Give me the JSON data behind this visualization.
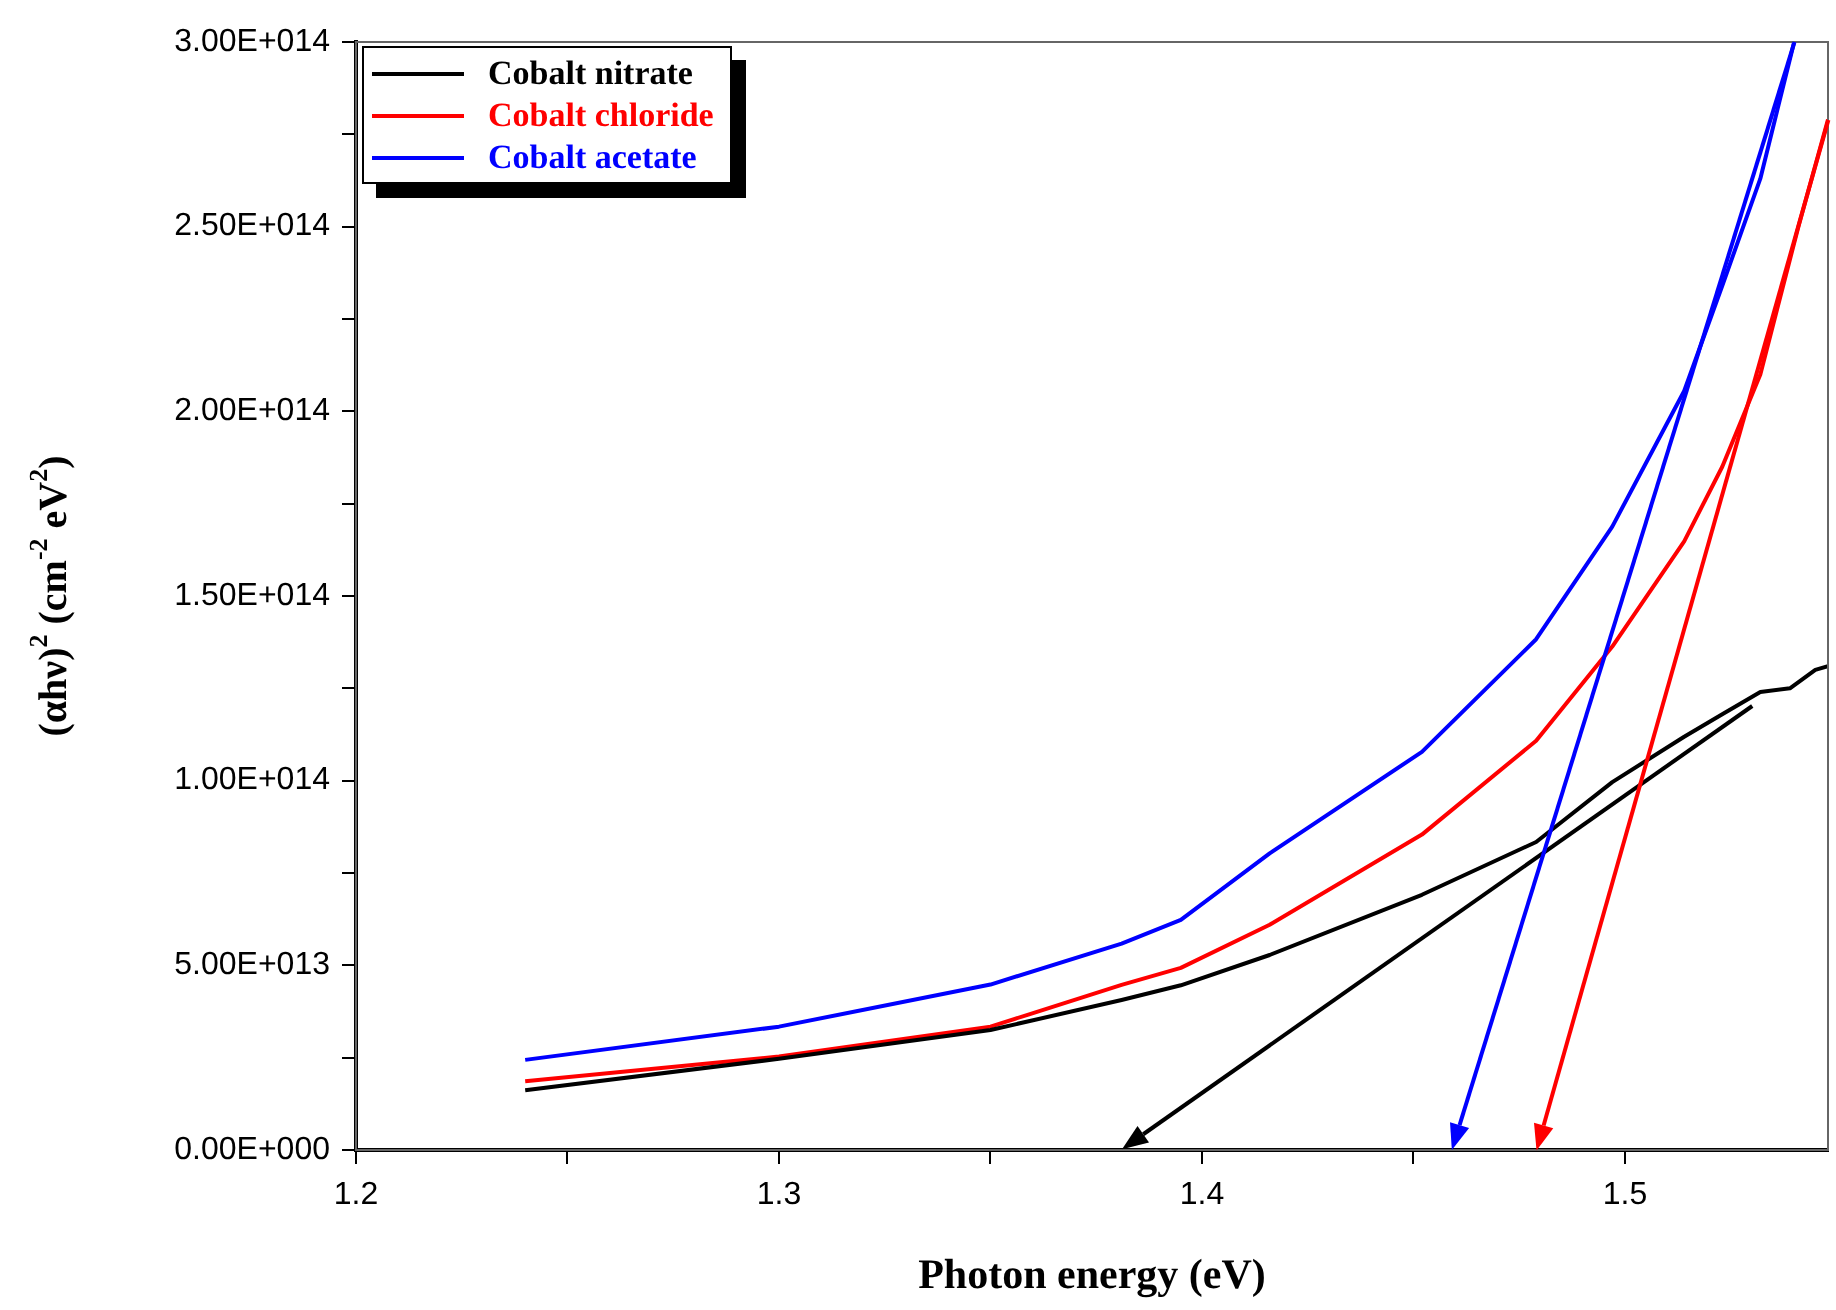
{
  "chart_data": {
    "type": "line",
    "xlabel": "Photon energy (eV)",
    "ylabel": "(αhν)$^{2}$ (cm$^{-2}$ eV$^{2}$)",
    "xlim": [
      1.2,
      1.548
    ],
    "xticks": [
      1.2,
      {
        "value": 1.25,
        "label": null
      },
      1.3,
      {
        "value": 1.35,
        "label": null
      },
      1.4,
      {
        "value": 1.45,
        "label": null
      },
      1.5
    ],
    "ylim": [
      0,
      300000000000000.0
    ],
    "yticks": [
      {
        "value": 0,
        "label": "0.00E+000"
      },
      {
        "value": 25000000000000.0,
        "label": null
      },
      {
        "value": 50000000000000.0,
        "label": "5.00E+013"
      },
      {
        "value": 75000000000000.0,
        "label": null
      },
      {
        "value": 100000000000000.0,
        "label": "1.00E+014"
      },
      {
        "value": 125000000000000.0,
        "label": null
      },
      {
        "value": 150000000000000.0,
        "label": "1.50E+014"
      },
      {
        "value": 175000000000000.0,
        "label": null
      },
      {
        "value": 200000000000000.0,
        "label": "2.00E+014"
      },
      {
        "value": 225000000000000.0,
        "label": null
      },
      {
        "value": 250000000000000.0,
        "label": "2.50E+014"
      },
      {
        "value": 275000000000000.0,
        "label": null
      },
      {
        "value": 300000000000000.0,
        "label": "3.00E+014"
      }
    ],
    "grid": false,
    "legend": "top left",
    "marker": "none",
    "line_style": "solid",
    "series": [
      {
        "name": "Cobalt nitrate",
        "color": "#000000",
        "x": [
          1.24,
          1.3,
          1.35,
          1.381,
          1.395,
          1.416,
          1.452,
          1.479,
          1.497,
          1.514,
          1.523,
          1.532,
          1.539,
          1.545,
          1.548
        ],
        "values": [
          16200000000000.0,
          24700000000000.0,
          32500000000000.0,
          40600000000000.0,
          44600000000000.0,
          52800000000000.0,
          69100000000000.0,
          83400000000000.0,
          99600000000000.0,
          111900000000000.0,
          118000000000000.0,
          124000000000000.0,
          125000000000000.0,
          130000000000000.0,
          131000000000000.0
        ]
      },
      {
        "name": "Cobalt chloride",
        "color": "#ff0000",
        "x": [
          1.24,
          1.3,
          1.35,
          1.381,
          1.395,
          1.416,
          1.452,
          1.479,
          1.497,
          1.514,
          1.523,
          1.532,
          1.541,
          1.548
        ],
        "values": [
          18600000000000.0,
          25300000000000.0,
          33400000000000.0,
          44700000000000.0,
          49300000000000.0,
          61000000000000.0,
          85400000000000.0,
          110800000000000.0,
          136300000000000.0,
          164800000000000.0,
          185000000000000.0,
          210000000000000.0,
          250000000000000.0,
          279000000000000.0
        ]
      },
      {
        "name": "Cobalt acetate",
        "color": "#0000ff",
        "x": [
          1.24,
          1.3,
          1.35,
          1.381,
          1.395,
          1.416,
          1.452,
          1.479,
          1.497,
          1.514,
          1.523,
          1.532,
          1.54
        ],
        "values": [
          24400000000000.0,
          33400000000000.0,
          44800000000000.0,
          55900000000000.0,
          62300000000000.0,
          80300000000000.0,
          107800000000000.0,
          138300000000000.0,
          168800000000000.0,
          205500000000000.0,
          234000000000000.0,
          263000000000000.0,
          300000000000000.0
        ]
      }
    ]
  }
}
